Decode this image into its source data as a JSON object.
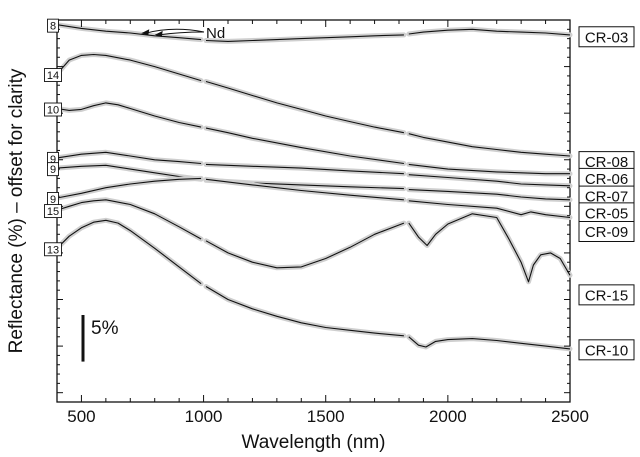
{
  "chart_data": {
    "type": "line",
    "xlabel": "Wavelength (nm)",
    "ylabel": "Reflectance (%) – offset for clarity",
    "xlim": [
      400,
      2500
    ],
    "xticks": [
      500,
      1000,
      1500,
      2000,
      2500
    ],
    "xtick_labels": [
      "500",
      "1000",
      "1500",
      "2000",
      "2500"
    ],
    "y_units": "% reflectance (offset; top of plot = 0, values increase downward)",
    "ylim": [
      0,
      41
    ],
    "grid": false,
    "band_gaps_nm": [
      1000,
      1830
    ],
    "scale_bar": {
      "label": "5%",
      "value": 5
    },
    "annotation": {
      "text": "Nd",
      "arrow_targets_nm": [
        745,
        800
      ]
    },
    "series": [
      {
        "name": "CR-03",
        "offset_label": "8",
        "end_label_y": 1.8,
        "x": [
          400,
          500,
          600,
          700,
          800,
          900,
          990,
          1010,
          1100,
          1200,
          1300,
          1400,
          1500,
          1600,
          1700,
          1820,
          1840,
          1900,
          2000,
          2100,
          2200,
          2300,
          2400,
          2500
        ],
        "y": [
          0.5,
          0.9,
          1.2,
          1.4,
          1.7,
          1.9,
          2.1,
          2.2,
          2.3,
          2.2,
          2.1,
          2.0,
          1.9,
          1.8,
          1.7,
          1.6,
          1.5,
          1.3,
          1.1,
          1.0,
          1.2,
          1.3,
          1.4,
          1.6
        ]
      },
      {
        "name": "CR-08",
        "offset_label": "14",
        "end_label_y": 15.2,
        "x": [
          400,
          450,
          500,
          550,
          600,
          700,
          800,
          900,
          990,
          1010,
          1100,
          1200,
          1300,
          1400,
          1500,
          1600,
          1700,
          1820,
          1840,
          1900,
          2000,
          2100,
          2200,
          2300,
          2400,
          2500
        ],
        "y": [
          5.8,
          4.3,
          3.8,
          3.7,
          3.8,
          4.3,
          5.0,
          5.8,
          6.5,
          6.6,
          7.3,
          8.1,
          8.9,
          9.6,
          10.3,
          10.9,
          11.5,
          12.1,
          12.2,
          12.6,
          13.1,
          13.6,
          13.9,
          14.2,
          14.4,
          14.6
        ]
      },
      {
        "name": "CR-06",
        "offset_label": "10",
        "end_label_y": 17.0,
        "x": [
          400,
          450,
          500,
          550,
          600,
          650,
          700,
          800,
          900,
          990,
          1010,
          1100,
          1200,
          1400,
          1600,
          1820,
          1840,
          2000,
          2200,
          2300,
          2400,
          2500
        ],
        "y": [
          9.5,
          9.7,
          9.6,
          9.2,
          8.9,
          9.1,
          9.5,
          10.3,
          11.0,
          11.5,
          11.6,
          12.1,
          12.7,
          13.7,
          14.6,
          15.4,
          15.5,
          16.0,
          16.3,
          16.4,
          16.5,
          16.5
        ]
      },
      {
        "name": "CR-07",
        "offset_label": "9",
        "end_label_y": 18.9,
        "x": [
          400,
          500,
          600,
          700,
          800,
          900,
          990,
          1010,
          1200,
          1400,
          1600,
          1820,
          1840,
          2000,
          2200,
          2300,
          2400,
          2500
        ],
        "y": [
          14.8,
          14.4,
          14.2,
          14.6,
          15.0,
          15.2,
          15.4,
          15.5,
          15.7,
          15.9,
          16.2,
          16.5,
          16.6,
          16.9,
          17.3,
          17.6,
          17.7,
          17.8
        ]
      },
      {
        "name": "CR-05",
        "offset_label": "9",
        "end_label_y": 20.7,
        "x": [
          400,
          500,
          600,
          700,
          800,
          900,
          990,
          1010,
          1200,
          1400,
          1600,
          1820,
          1840,
          2000,
          2200,
          2300,
          2400,
          2500
        ],
        "y": [
          15.9,
          15.7,
          15.6,
          16.0,
          16.4,
          16.8,
          17.1,
          17.2,
          17.5,
          17.7,
          17.9,
          18.1,
          18.2,
          18.4,
          18.7,
          19.0,
          19.2,
          19.3
        ]
      },
      {
        "name": "CR-09",
        "offset_label": "9",
        "end_label_y": 22.7,
        "x": [
          400,
          500,
          600,
          700,
          800,
          900,
          990,
          1010,
          1200,
          1400,
          1600,
          1820,
          1840,
          2000,
          2200,
          2300,
          2340,
          2400,
          2500
        ],
        "y": [
          19.1,
          18.6,
          18.0,
          17.6,
          17.3,
          17.1,
          17.0,
          17.1,
          17.7,
          18.3,
          18.8,
          19.3,
          19.4,
          19.8,
          20.2,
          20.9,
          20.6,
          20.9,
          21.2
        ]
      },
      {
        "name": "CR-15",
        "offset_label": "15",
        "end_label_y": 29.5,
        "x": [
          400,
          450,
          500,
          550,
          600,
          700,
          800,
          900,
          990,
          1010,
          1100,
          1200,
          1300,
          1400,
          1500,
          1600,
          1700,
          1820,
          1840,
          1880,
          1915,
          1950,
          2000,
          2100,
          2200,
          2250,
          2300,
          2330,
          2350,
          2380,
          2420,
          2460,
          2500
        ],
        "y": [
          20.4,
          20.0,
          19.6,
          19.4,
          19.3,
          19.8,
          20.8,
          22.2,
          23.5,
          23.7,
          25.0,
          26.0,
          26.6,
          26.5,
          25.6,
          24.4,
          23.0,
          21.8,
          21.8,
          23.3,
          24.2,
          23.0,
          21.9,
          20.8,
          21.2,
          23.5,
          26.0,
          28.1,
          26.3,
          25.2,
          25.0,
          25.6,
          27.4
        ]
      },
      {
        "name": "CR-10",
        "offset_label": "13",
        "end_label_y": 35.4,
        "x": [
          400,
          450,
          500,
          550,
          600,
          650,
          700,
          800,
          900,
          990,
          1010,
          1100,
          1200,
          1300,
          1400,
          1500,
          1600,
          1700,
          1820,
          1840,
          1880,
          1910,
          1950,
          2000,
          2100,
          2200,
          2300,
          2400,
          2500
        ],
        "y": [
          24.5,
          23.2,
          22.3,
          21.7,
          21.5,
          21.8,
          22.6,
          24.5,
          26.5,
          28.3,
          28.6,
          30.0,
          31.0,
          31.8,
          32.5,
          33.0,
          33.3,
          33.6,
          33.9,
          34.0,
          34.9,
          35.1,
          34.5,
          34.3,
          34.2,
          34.4,
          34.7,
          35.0,
          35.3
        ]
      }
    ]
  }
}
